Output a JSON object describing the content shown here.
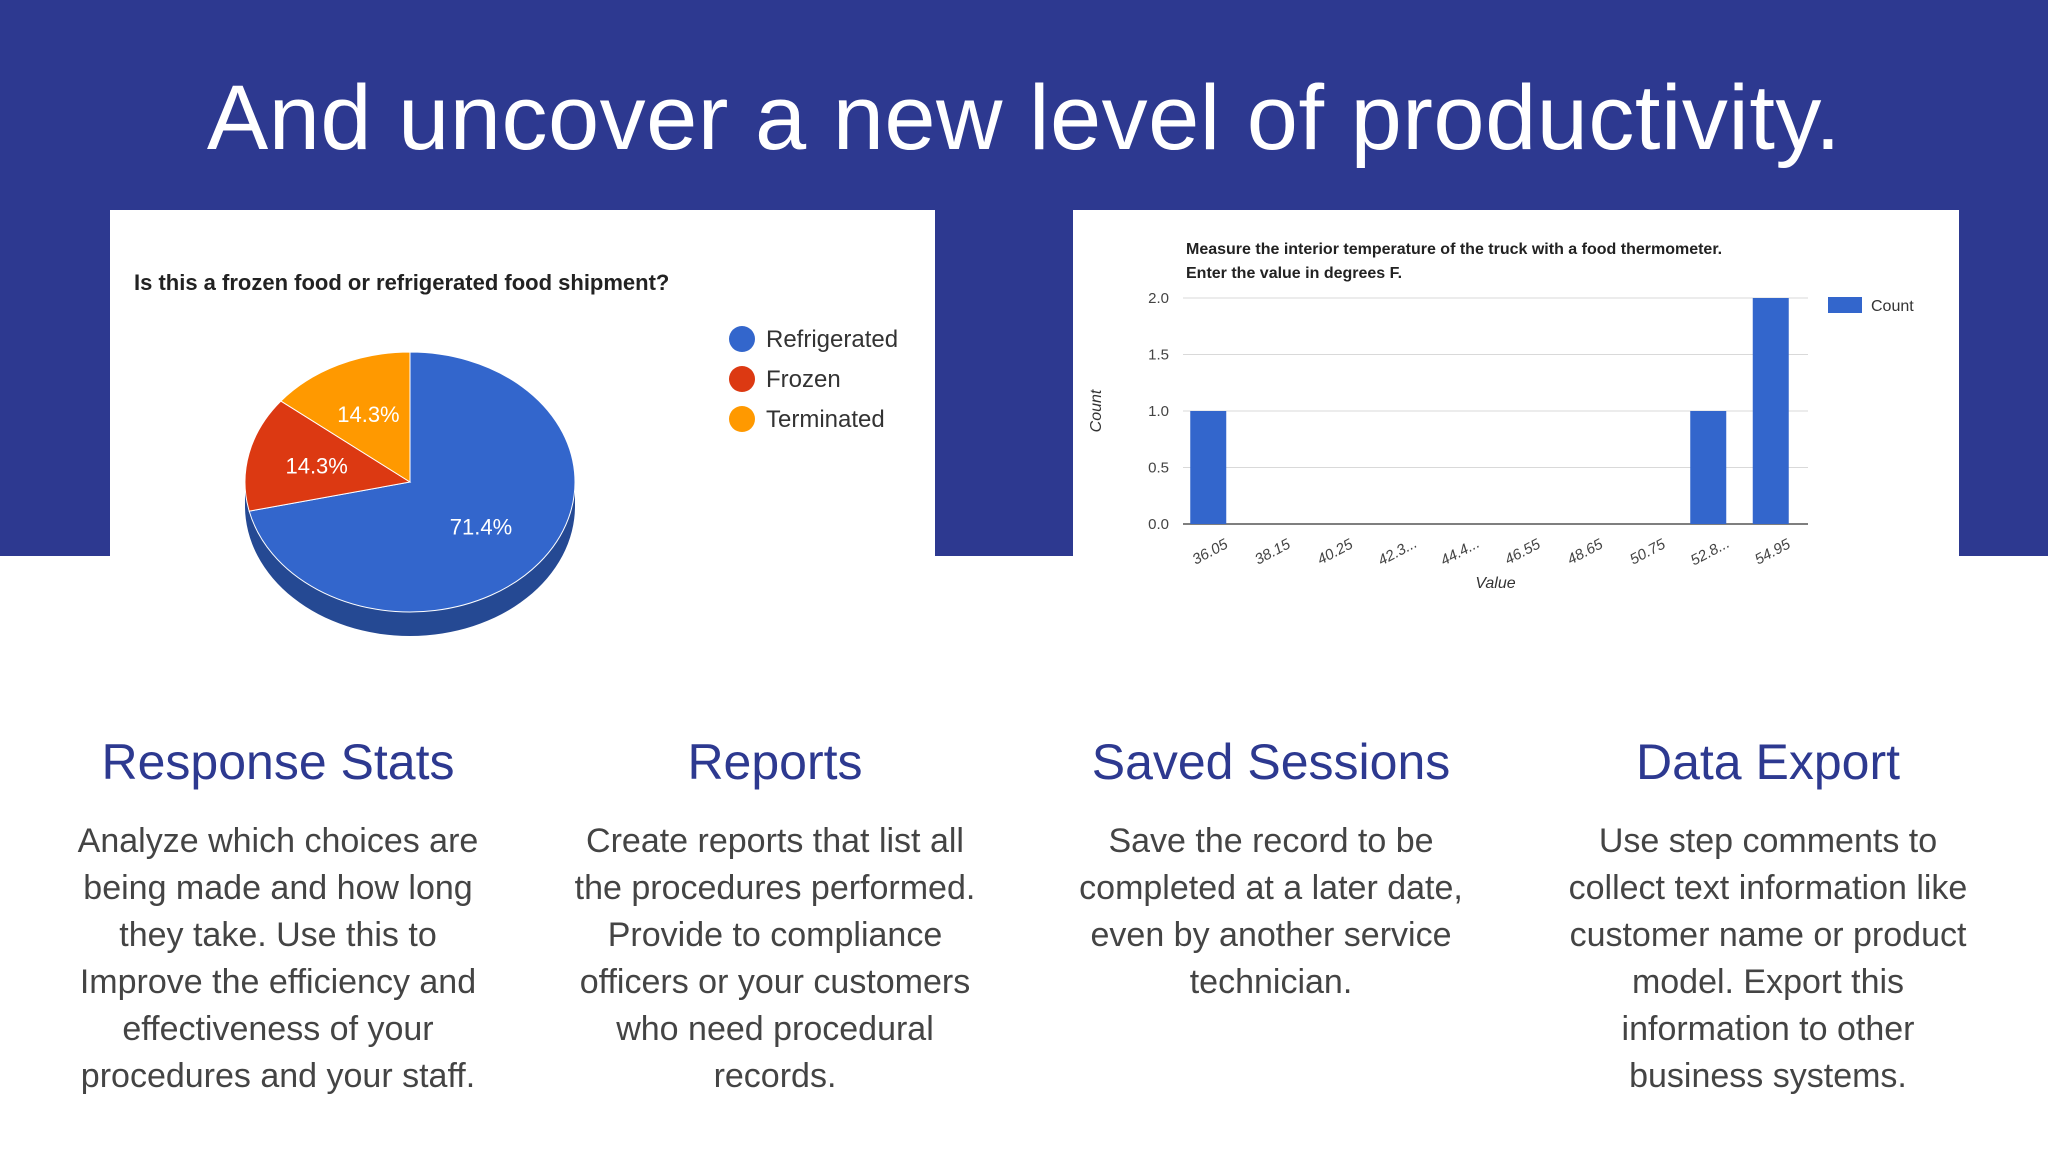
{
  "slide": {
    "headline": "And uncover a new level of productivity.",
    "band_color": "#2d3990"
  },
  "pie_card": {
    "title": "Is this a frozen food or refrigerated food shipment?"
  },
  "bar_card": {
    "title_line1": "Measure the interior temperature of the truck with a food thermometer.",
    "title_line2": "Enter the value in degrees F."
  },
  "chart_data": [
    {
      "type": "pie",
      "title": "Is this a frozen food or refrigerated food shipment?",
      "slices": [
        {
          "label": "Refrigerated",
          "value": 71.4,
          "display": "71.4%",
          "color": "#3366cc"
        },
        {
          "label": "Frozen",
          "value": 14.3,
          "display": "14.3%",
          "color": "#dc3912"
        },
        {
          "label": "Terminated",
          "value": 14.3,
          "display": "14.3%",
          "color": "#ff9900"
        }
      ],
      "legend": "right",
      "style": "3d"
    },
    {
      "type": "bar",
      "title": "Measure the interior temperature of the truck with a food thermometer. Enter the value in degrees F.",
      "xlabel": "Value",
      "ylabel": "Count",
      "categories": [
        "36.05",
        "38.15",
        "40.25",
        "42.3...",
        "44.4...",
        "46.55",
        "48.65",
        "50.75",
        "52.8...",
        "54.95"
      ],
      "series": [
        {
          "name": "Count",
          "values": [
            1,
            0,
            0,
            0,
            0,
            0,
            0,
            0,
            1,
            2
          ],
          "color": "#3366cc"
        }
      ],
      "ylim": [
        0,
        2
      ],
      "yticks": [
        "0.0",
        "0.5",
        "1.0",
        "1.5",
        "2.0"
      ],
      "grid": true,
      "legend": "top-right"
    }
  ],
  "features": [
    {
      "title": "Response Stats",
      "body": "Analyze which choices are\nbeing made and how long\nthey take.  Use this to\nImprove the efficiency and\neffectiveness of your\nprocedures and your staff."
    },
    {
      "title": "Reports",
      "body": "Create reports that list all\nthe procedures performed.\nProvide to compliance\nofficers or your customers\nwho need procedural\nrecords."
    },
    {
      "title": "Saved Sessions",
      "body": "Save the record to be\ncompleted at a later date,\neven by another service\ntechnician."
    },
    {
      "title": "Data Export",
      "body": "Use step comments to\ncollect text information like\ncustomer name or product\nmodel.  Export this\ninformation to other\nbusiness systems."
    }
  ]
}
